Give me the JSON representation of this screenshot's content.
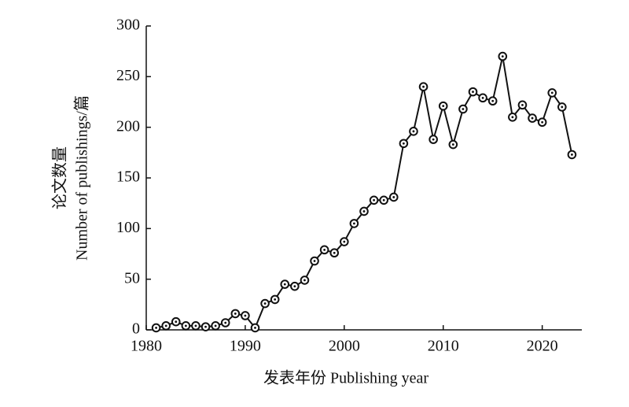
{
  "chart_data": {
    "type": "line",
    "x_label": "发表年份 Publishing year",
    "y_label": [
      "论文数量",
      "Number of publishings/篇"
    ],
    "x": [
      1981,
      1982,
      1983,
      1984,
      1985,
      1986,
      1987,
      1988,
      1989,
      1990,
      1991,
      1992,
      1993,
      1994,
      1995,
      1996,
      1997,
      1998,
      1999,
      2000,
      2001,
      2002,
      2003,
      2004,
      2005,
      2006,
      2007,
      2008,
      2009,
      2010,
      2011,
      2012,
      2013,
      2014,
      2015,
      2016,
      2017,
      2018,
      2019,
      2020,
      2021,
      2022,
      2023
    ],
    "values": [
      2,
      4,
      8,
      4,
      4,
      3,
      4,
      7,
      16,
      14,
      2,
      26,
      30,
      45,
      43,
      49,
      68,
      79,
      76,
      87,
      105,
      117,
      128,
      128,
      131,
      184,
      196,
      240,
      188,
      221,
      183,
      218,
      235,
      229,
      226,
      270,
      210,
      222,
      209,
      205,
      234,
      220,
      173
    ],
    "color": "#111111",
    "xlim": [
      1980,
      2024
    ],
    "xticks": [
      1980,
      1990,
      2000,
      2010,
      2020
    ],
    "ylim": [
      0,
      300
    ],
    "yticks": [
      0,
      50,
      100,
      150,
      200,
      250,
      300
    ],
    "grid": false
  }
}
